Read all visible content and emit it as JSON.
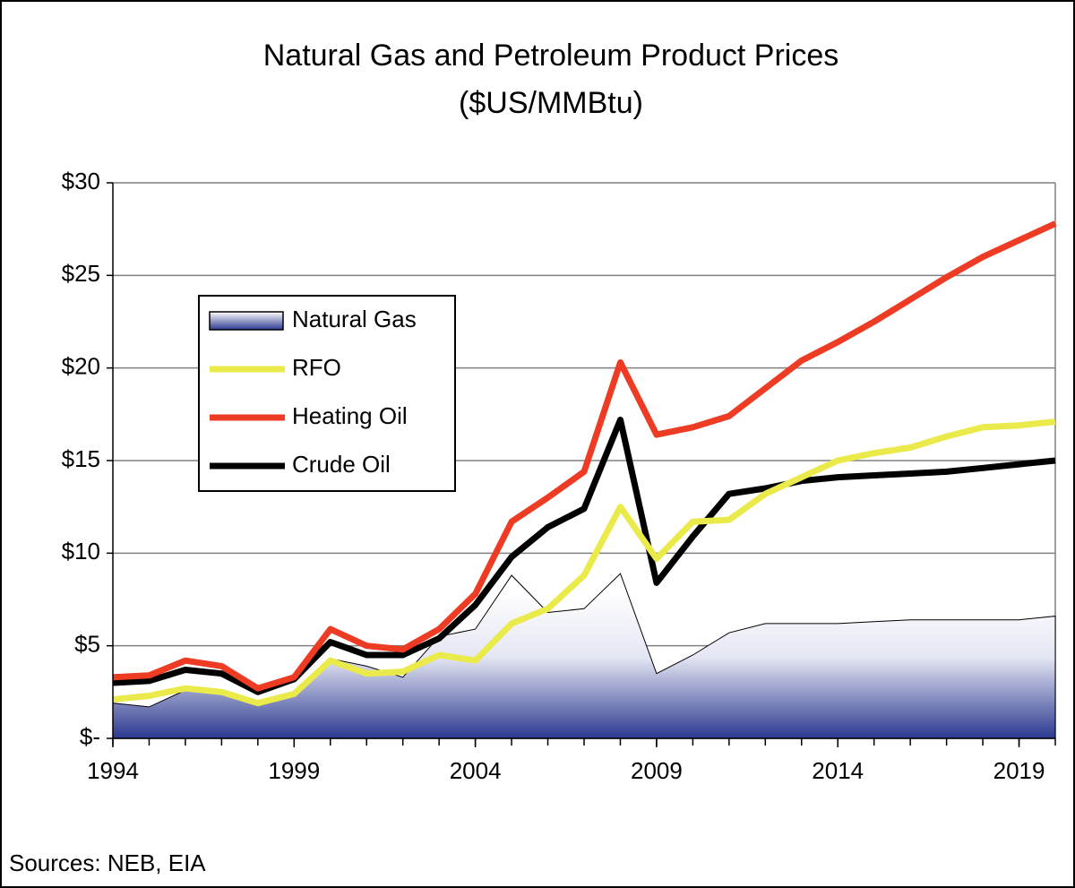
{
  "chart_data": {
    "type": "line",
    "title": "Natural Gas and Petroleum Product Prices",
    "subtitle": "($US/MMBtu)",
    "source": "Sources: NEB, EIA",
    "x": [
      1994,
      1995,
      1996,
      1997,
      1998,
      1999,
      2000,
      2001,
      2002,
      2003,
      2004,
      2005,
      2006,
      2007,
      2008,
      2009,
      2010,
      2011,
      2012,
      2013,
      2014,
      2015,
      2016,
      2017,
      2018,
      2019,
      2020
    ],
    "xlim": [
      1994,
      2020
    ],
    "xticks": [
      1994,
      1999,
      2004,
      2009,
      2014,
      2019
    ],
    "ylim": [
      0,
      30
    ],
    "yticks": [
      {
        "value": 0,
        "label": "$-"
      },
      {
        "value": 5,
        "label": "$5"
      },
      {
        "value": 10,
        "label": "$10"
      },
      {
        "value": 15,
        "label": "$15"
      },
      {
        "value": 20,
        "label": "$20"
      },
      {
        "value": 25,
        "label": "$25"
      },
      {
        "value": 30,
        "label": "$30"
      }
    ],
    "grid": true,
    "series": [
      {
        "name": "Natural Gas",
        "type": "area",
        "color": "#2b3990",
        "values": [
          1.9,
          1.7,
          2.6,
          2.5,
          2.0,
          2.3,
          4.3,
          3.9,
          3.3,
          5.5,
          5.9,
          8.8,
          6.8,
          7.0,
          8.9,
          3.5,
          4.5,
          5.7,
          6.2,
          6.2,
          6.2,
          6.3,
          6.4,
          6.4,
          6.4,
          6.4,
          6.6
        ]
      },
      {
        "name": "RFO",
        "type": "line",
        "color": "#eaea4a",
        "values": [
          2.1,
          2.3,
          2.7,
          2.5,
          1.9,
          2.4,
          4.2,
          3.5,
          3.6,
          4.5,
          4.2,
          6.2,
          7.0,
          8.8,
          12.5,
          9.7,
          11.7,
          11.8,
          13.2,
          14.1,
          15.0,
          15.4,
          15.7,
          16.3,
          16.8,
          16.9,
          17.1
        ]
      },
      {
        "name": "Heating Oil",
        "type": "line",
        "color": "#ee3b24",
        "values": [
          3.3,
          3.4,
          4.2,
          3.9,
          2.7,
          3.3,
          5.9,
          5.0,
          4.8,
          5.9,
          7.8,
          11.7,
          13.0,
          14.4,
          20.3,
          16.4,
          16.8,
          17.4,
          18.9,
          20.4,
          21.4,
          22.5,
          23.7,
          24.9,
          26.0,
          26.9,
          27.8
        ]
      },
      {
        "name": "Crude Oil",
        "type": "line",
        "color": "#000000",
        "values": [
          3.0,
          3.1,
          3.7,
          3.5,
          2.5,
          3.2,
          5.2,
          4.5,
          4.5,
          5.4,
          7.2,
          9.8,
          11.4,
          12.4,
          17.2,
          8.4,
          10.9,
          13.2,
          13.5,
          13.9,
          14.1,
          14.2,
          14.3,
          14.4,
          14.6,
          14.8,
          15.0
        ]
      }
    ]
  }
}
